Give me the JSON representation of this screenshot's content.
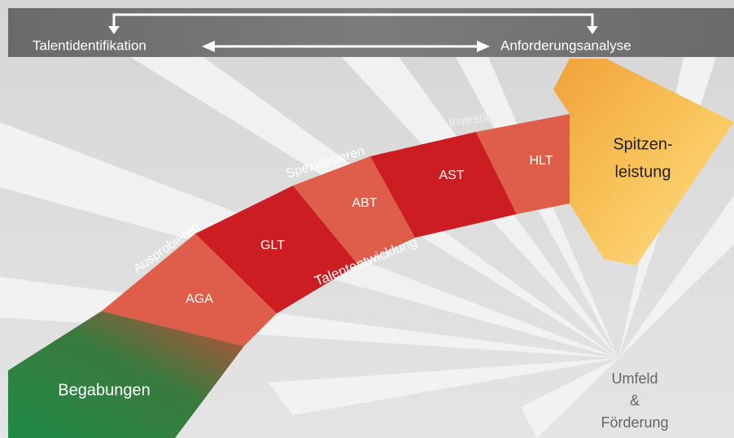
{
  "header": {
    "left": "Talentidentifikation",
    "right": "Anforderungsanalyse"
  },
  "phases": [
    "Ausprobieren",
    "Spezialisieren",
    "Investieren"
  ],
  "stages": [
    "AGA",
    "GLT",
    "ABT",
    "AST",
    "HLT"
  ],
  "arrow_label": "Talententwicklung",
  "start": "Begabungen",
  "goal": [
    "Spitzen-",
    "leistung"
  ],
  "environment": [
    "Umfeld",
    "&",
    "Förderung"
  ]
}
